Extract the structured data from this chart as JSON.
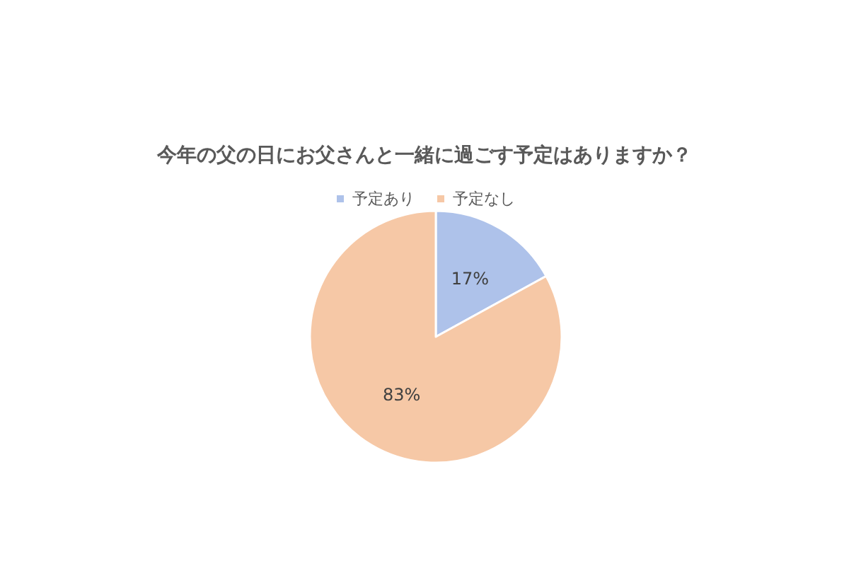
{
  "chart_data": {
    "type": "pie",
    "title": "今年の父の日にお父さんと一緒に過ごす予定はありますか？",
    "categories": [
      "予定あり",
      "予定なし"
    ],
    "values": [
      17,
      83
    ],
    "value_labels": [
      "17%",
      "83%"
    ],
    "colors": [
      "#aec2ea",
      "#f6c8a6"
    ],
    "legend": "top"
  }
}
